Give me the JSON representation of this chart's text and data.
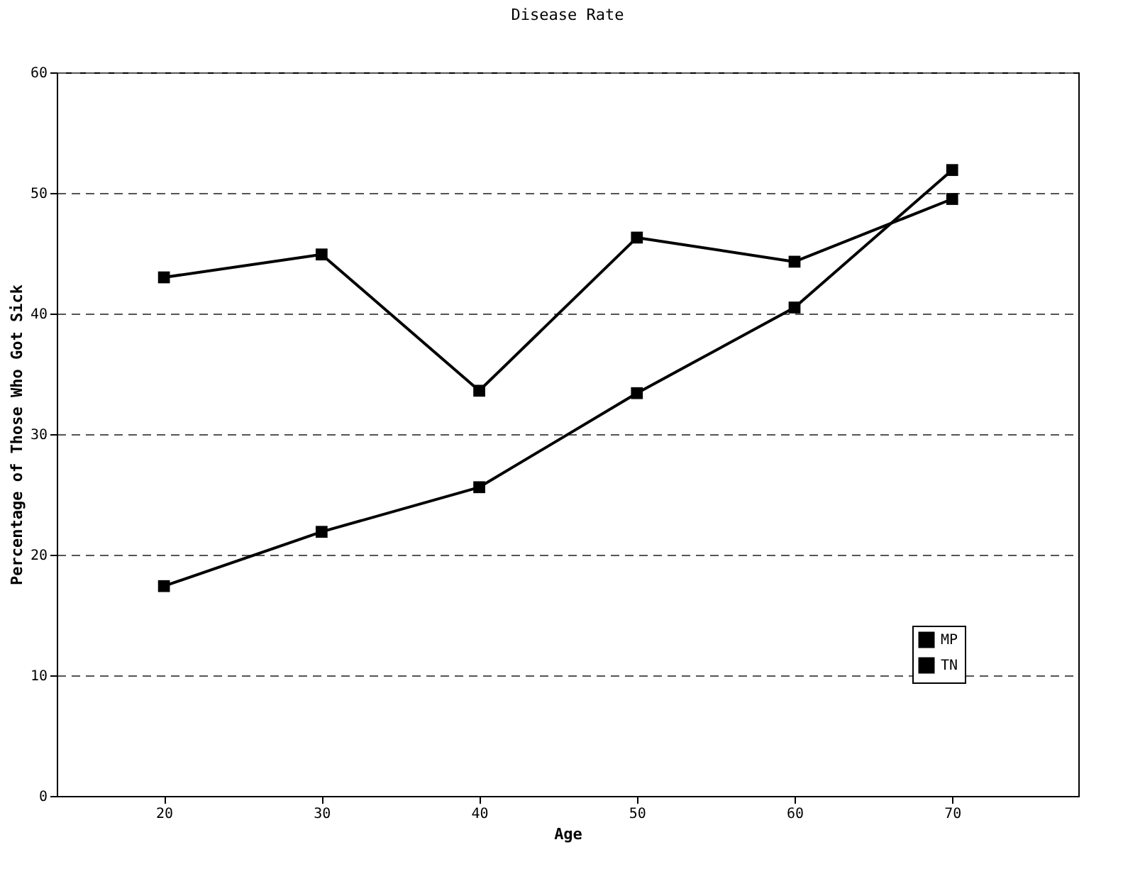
{
  "chart_data": {
    "type": "line",
    "title": "Disease Rate",
    "xlabel": "Age",
    "ylabel": "Percentage of Those Who Got Sick",
    "x": [
      20,
      30,
      40,
      50,
      60,
      70
    ],
    "series": [
      {
        "name": "MP",
        "color": "#000000",
        "values": [
          43.0,
          44.9,
          33.6,
          46.3,
          44.3,
          49.5
        ]
      },
      {
        "name": "TN",
        "color": "#000000",
        "values": [
          17.4,
          21.9,
          25.6,
          33.4,
          40.5,
          51.9
        ]
      }
    ],
    "xlim": [
      13.2,
      78
    ],
    "xticks": [
      20,
      30,
      40,
      50,
      60,
      70
    ],
    "ylim": [
      0,
      60
    ],
    "yticks": [
      0,
      10,
      20,
      30,
      40,
      50,
      60
    ],
    "grid": "y",
    "legend": "bottom right",
    "marker": "square",
    "line_style": "solid"
  }
}
